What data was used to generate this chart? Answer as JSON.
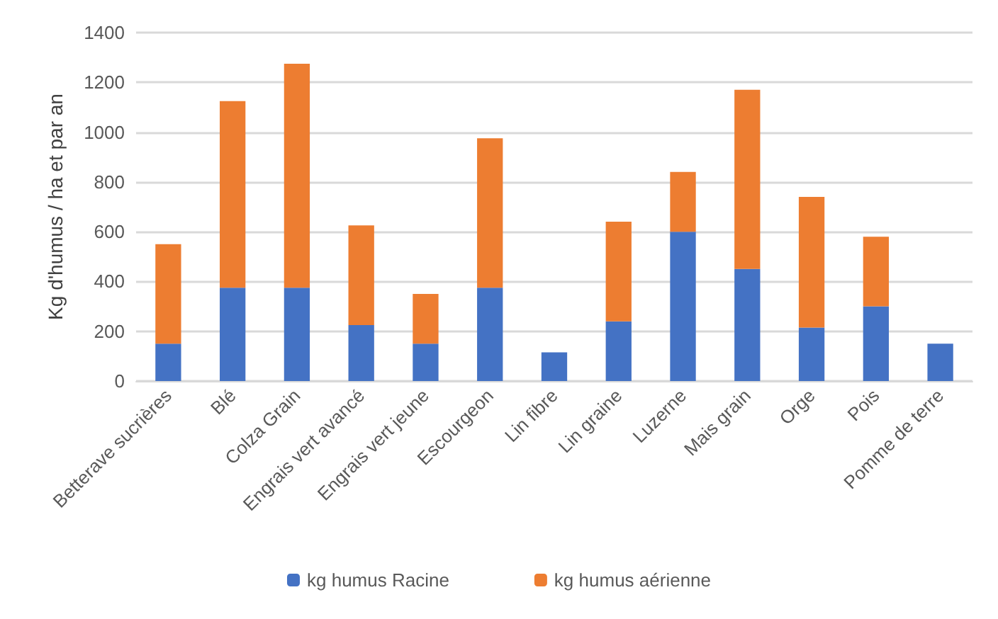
{
  "chart_data": {
    "type": "bar",
    "stacked": true,
    "ylabel": "Kg d'humus / ha et par an",
    "categories": [
      "Betterave sucrières",
      "Blé",
      "Colza Grain",
      "Engrais vert avancé",
      "Engrais vert jeune",
      "Escourgeon",
      "Lin fibre",
      "Lin graine",
      "Luzerne",
      "Mais grain",
      "Orge",
      "Pois",
      "Pomme de terre"
    ],
    "series": [
      {
        "name": "kg humus Racine",
        "color": "#4472c4",
        "values": [
          150,
          375,
          375,
          225,
          150,
          375,
          115,
          240,
          600,
          450,
          215,
          300,
          150
        ]
      },
      {
        "name": "kg humus aérienne",
        "color": "#ed7d31",
        "values": [
          400,
          750,
          900,
          400,
          200,
          600,
          null,
          400,
          240,
          720,
          525,
          280,
          null
        ]
      }
    ],
    "ylim": [
      0,
      1400
    ],
    "yticks": [
      0,
      200,
      400,
      600,
      800,
      1000,
      1200,
      1400
    ],
    "grid": "y",
    "legend": "bottom"
  }
}
